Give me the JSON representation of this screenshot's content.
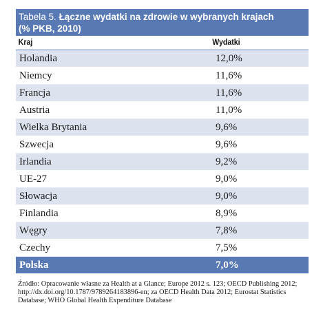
{
  "table": {
    "title_prefix": "Tabela 5.",
    "title_main": "Łączne wydatki na zdrowie w wybranych krajach",
    "title_line2": "(% PKB, 2010)",
    "col_country": "Kraj",
    "col_value": "Wydatki",
    "rows": [
      {
        "country": "Holandia",
        "value": "12,0%"
      },
      {
        "country": "Niemcy",
        "value": "11,6%"
      },
      {
        "country": "Francja",
        "value": "11,6%"
      },
      {
        "country": "Austria",
        "value": "11,0%"
      },
      {
        "country": "Wielka Brytania",
        "value": "9,6%"
      },
      {
        "country": "Szwecja",
        "value": "9,6%"
      },
      {
        "country": "Irlandia",
        "value": "9,2%"
      },
      {
        "country": "UE-27",
        "value": "9,0%"
      },
      {
        "country": "Słowacja",
        "value": "9,0%"
      },
      {
        "country": "Finlandia",
        "value": "8,9%"
      },
      {
        "country": "Węgry",
        "value": "7,8%"
      },
      {
        "country": "Czechy",
        "value": "7,5%"
      },
      {
        "country": "Polska",
        "value": "7,0%"
      }
    ],
    "source": "Źródło: Opracowanie własne za Health at a Glance; Europe 2012 s. 123; OECD Publishing 2012; http://dx.doi.org/10.1787/9789264183896-en; za OECD Health Data 2012; Eurostat Statistics Database; WHO Global Health Expenditure Database"
  },
  "colors": {
    "header_blue": "#5979b4",
    "row_shade": "#dde2ef"
  }
}
